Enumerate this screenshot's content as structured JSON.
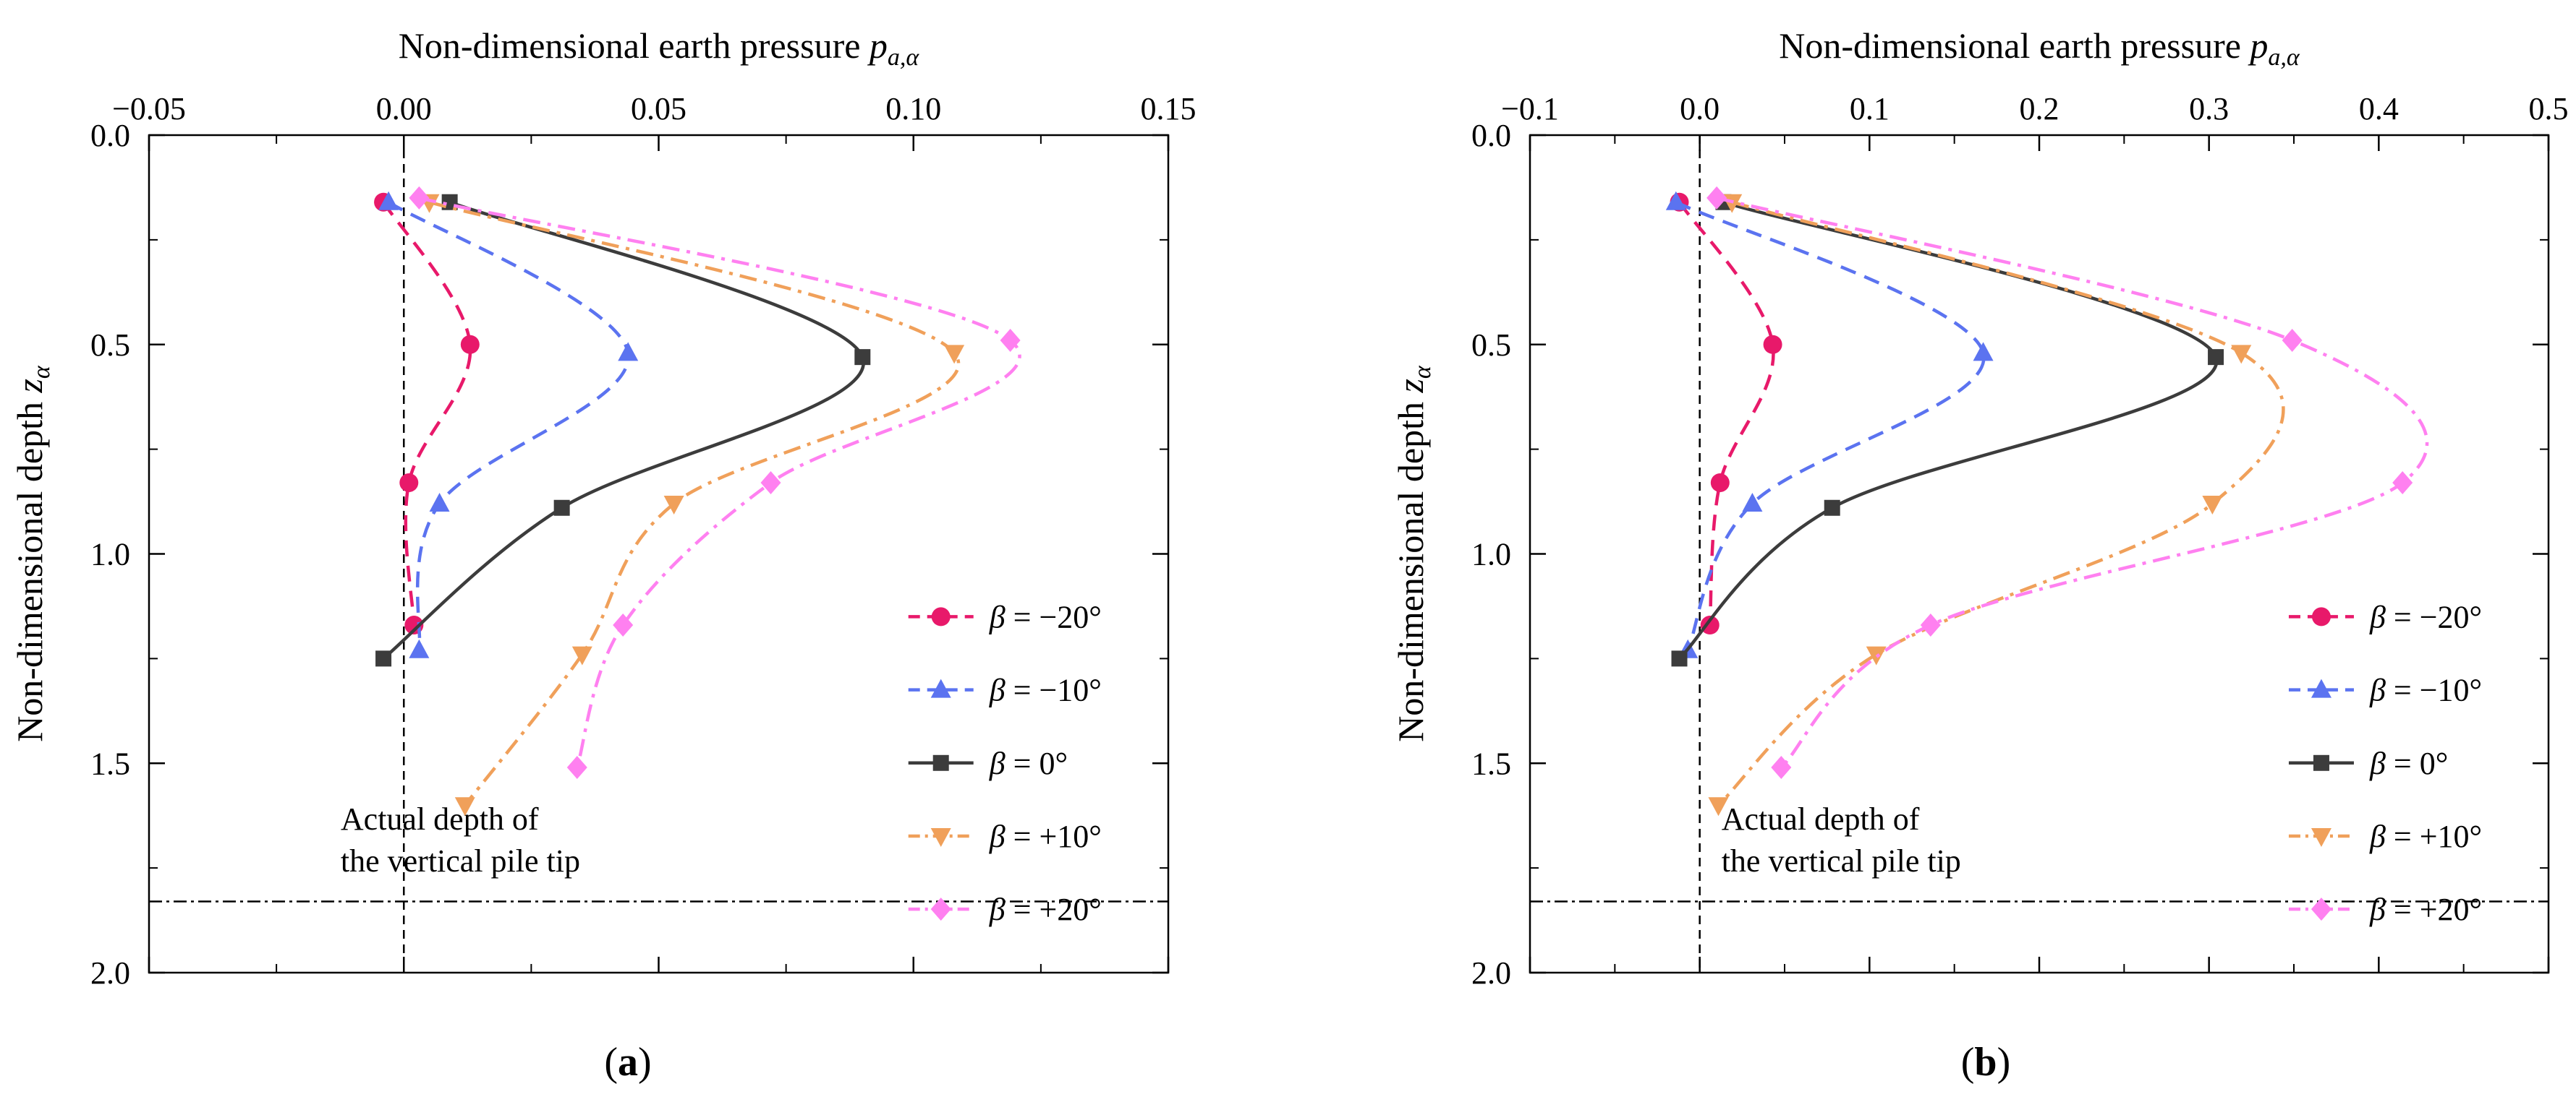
{
  "chart_data": [
    {
      "type": "line",
      "panel_label": "(a)",
      "xlabel_text": "Non-dimensional earth pressure ",
      "xlabel_sym": "p",
      "xlabel_sub": "a,α",
      "ylabel_text": "Non-dimensional depth ",
      "ylabel_sym": "z",
      "ylabel_sub": "α",
      "xlim": [
        -0.05,
        0.15
      ],
      "ylim": [
        0.0,
        2.0
      ],
      "x_axis_position": "top",
      "y_inverted": true,
      "x_ticks": [
        -0.05,
        0.0,
        0.05,
        0.1,
        0.15
      ],
      "x_tick_labels": [
        "−0.05",
        "0.00",
        "0.05",
        "0.10",
        "0.15"
      ],
      "y_ticks": [
        0.0,
        0.5,
        1.0,
        1.5,
        2.0
      ],
      "y_tick_labels": [
        "0.0",
        "0.5",
        "1.0",
        "1.5",
        "2.0"
      ],
      "legend_position": "right",
      "vertical_ref_x": 0.0,
      "pile_tip_depth": 1.83,
      "annotation_lines": [
        "Actual depth of",
        "the vertical pile tip"
      ],
      "series": [
        {
          "name": "β = −20°",
          "beta": "β",
          "value_text": " = −20°",
          "color": "#e8196a",
          "marker": "circle",
          "dash": "dash",
          "x": [
            -0.004,
            0.013,
            0.001,
            0.002
          ],
          "y": [
            0.16,
            0.5,
            0.83,
            1.17
          ]
        },
        {
          "name": "β = −10°",
          "beta": "β",
          "value_text": " = −10°",
          "color": "#5b73f0",
          "marker": "triangle-up",
          "dash": "dash",
          "x": [
            -0.003,
            0.044,
            0.007,
            0.003
          ],
          "y": [
            0.16,
            0.52,
            0.88,
            1.23
          ]
        },
        {
          "name": "β = 0°",
          "beta": "β",
          "value_text": " = 0°",
          "color": "#3c3c3c",
          "marker": "square",
          "dash": "solid",
          "x": [
            0.009,
            0.09,
            0.031,
            -0.004
          ],
          "y": [
            0.16,
            0.53,
            0.89,
            1.25
          ]
        },
        {
          "name": "β = +10°",
          "beta": "β",
          "value_text": " = +10°",
          "color": "#f0a05a",
          "marker": "triangle-down",
          "dash": "dashdot",
          "x": [
            0.005,
            0.108,
            0.053,
            0.035,
            0.012
          ],
          "y": [
            0.16,
            0.52,
            0.88,
            1.24,
            1.6
          ]
        },
        {
          "name": "β = +20°",
          "beta": "β",
          "value_text": " = +20°",
          "color": "#ff80f0",
          "marker": "diamond",
          "dash": "dashdot",
          "x": [
            0.003,
            0.119,
            0.072,
            0.043,
            0.034
          ],
          "y": [
            0.15,
            0.49,
            0.83,
            1.17,
            1.51
          ]
        }
      ]
    },
    {
      "type": "line",
      "panel_label": "(b)",
      "xlabel_text": "Non-dimensional earth pressure ",
      "xlabel_sym": "p",
      "xlabel_sub": "a,α",
      "ylabel_text": "Non-dimensional depth ",
      "ylabel_sym": "z",
      "ylabel_sub": "α",
      "xlim": [
        -0.1,
        0.5
      ],
      "ylim": [
        0.0,
        2.0
      ],
      "x_axis_position": "top",
      "y_inverted": true,
      "x_ticks": [
        -0.1,
        0.0,
        0.1,
        0.2,
        0.3,
        0.4,
        0.5
      ],
      "x_tick_labels": [
        "−0.1",
        "0.0",
        "0.1",
        "0.2",
        "0.3",
        "0.4",
        "0.5"
      ],
      "y_ticks": [
        0.0,
        0.5,
        1.0,
        1.5,
        2.0
      ],
      "y_tick_labels": [
        "0.0",
        "0.5",
        "1.0",
        "1.5",
        "2.0"
      ],
      "legend_position": "right",
      "vertical_ref_x": 0.0,
      "pile_tip_depth": 1.83,
      "annotation_lines": [
        "Actual depth of",
        "the vertical pile tip"
      ],
      "series": [
        {
          "name": "β = −20°",
          "beta": "β",
          "value_text": " = −20°",
          "color": "#e8196a",
          "marker": "circle",
          "dash": "dash",
          "x": [
            -0.012,
            0.043,
            0.012,
            0.006
          ],
          "y": [
            0.16,
            0.5,
            0.83,
            1.17
          ]
        },
        {
          "name": "β = −10°",
          "beta": "β",
          "value_text": " = −10°",
          "color": "#5b73f0",
          "marker": "triangle-up",
          "dash": "dash",
          "x": [
            -0.014,
            0.167,
            0.031,
            -0.007
          ],
          "y": [
            0.16,
            0.52,
            0.88,
            1.23
          ]
        },
        {
          "name": "β = 0°",
          "beta": "β",
          "value_text": " = 0°",
          "color": "#3c3c3c",
          "marker": "square",
          "dash": "solid",
          "x": [
            0.014,
            0.304,
            0.078,
            -0.012
          ],
          "y": [
            0.16,
            0.53,
            0.89,
            1.25
          ]
        },
        {
          "name": "β = +10°",
          "beta": "β",
          "value_text": " = +10°",
          "color": "#f0a05a",
          "marker": "triangle-down",
          "dash": "dashdot",
          "x": [
            0.019,
            0.319,
            0.302,
            0.104,
            0.011
          ],
          "y": [
            0.16,
            0.52,
            0.88,
            1.24,
            1.6
          ]
        },
        {
          "name": "β = +20°",
          "beta": "β",
          "value_text": " = +20°",
          "color": "#ff80f0",
          "marker": "diamond",
          "dash": "dashdot",
          "x": [
            0.01,
            0.349,
            0.414,
            0.136,
            0.048
          ],
          "y": [
            0.15,
            0.49,
            0.83,
            1.17,
            1.51
          ]
        }
      ]
    }
  ]
}
